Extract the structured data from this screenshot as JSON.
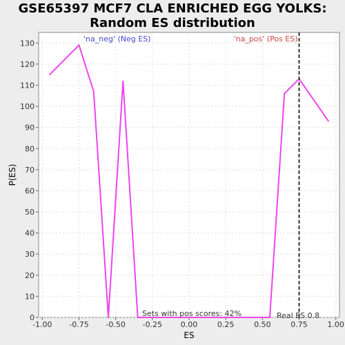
{
  "chart_data": {
    "type": "line",
    "title_line1": "GSE65397 MCF7 CLA ENRICHED EGG YOLKS:",
    "title_line2": "Random ES distribution",
    "xlabel": "ES",
    "ylabel": "P(ES)",
    "xlim": [
      -1.025,
      1.025
    ],
    "ylim": [
      0,
      135
    ],
    "x_ticks": [
      "-1.00",
      "-0.75",
      "-0.50",
      "-0.25",
      "0.00",
      "0.25",
      "0.50",
      "0.75",
      "1.00"
    ],
    "x_tick_values": [
      -1.0,
      -0.75,
      -0.5,
      -0.25,
      0.0,
      0.25,
      0.5,
      0.75,
      1.0
    ],
    "y_ticks": [
      "0",
      "10",
      "20",
      "30",
      "40",
      "50",
      "60",
      "70",
      "80",
      "90",
      "100",
      "110",
      "120",
      "130"
    ],
    "y_tick_values": [
      0,
      10,
      20,
      30,
      40,
      50,
      60,
      70,
      80,
      90,
      100,
      110,
      120,
      130
    ],
    "grid": true,
    "series": [
      {
        "color": "#ee44ee",
        "x": [
          -0.95,
          -0.75,
          -0.65,
          -0.55,
          -0.45,
          -0.35,
          -0.25,
          -0.15,
          -0.05,
          0.05,
          0.15,
          0.25,
          0.35,
          0.45,
          0.55,
          0.65,
          0.75,
          0.85,
          0.95
        ],
        "y": [
          115,
          129,
          107,
          0,
          112,
          0,
          0,
          0,
          0,
          0,
          0,
          0,
          0,
          0,
          0,
          106,
          113,
          103,
          93
        ]
      }
    ],
    "real_es": 0.75,
    "real_es_label": "Real ES 0.8",
    "neg_label": "'na_neg' (Neg ES)",
    "pos_label": "'na_pos' (Pos ES)",
    "pos_scores_label": "Sets with pos scores: 42%",
    "colors": {
      "background": "#ededed",
      "plot_background": "#ffffff",
      "line": "#ee44ee",
      "neg_label": "#4444cc",
      "pos_label": "#cc4444",
      "real_es_line": "#333333"
    }
  }
}
